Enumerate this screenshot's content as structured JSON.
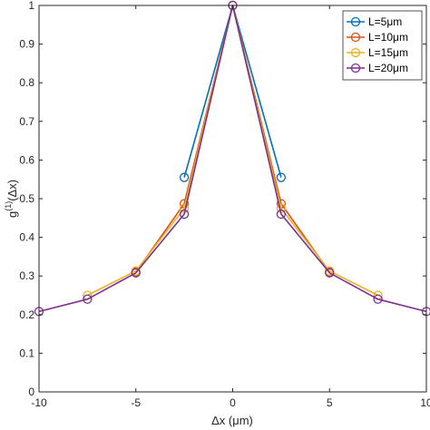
{
  "chart_data": {
    "type": "line",
    "title": "",
    "xlabel": "Δx (μm)",
    "ylabel_parts": {
      "base": "g",
      "sup": "(1)",
      "arg": "(Δx)"
    },
    "xlim": [
      -10,
      10
    ],
    "ylim": [
      0,
      1
    ],
    "x_ticks": [
      "-10",
      "-5",
      "0",
      "5",
      "10"
    ],
    "y_ticks": [
      "0",
      "0.1",
      "0.2",
      "0.3",
      "0.4",
      "0.5",
      "0.6",
      "0.7",
      "0.8",
      "0.9",
      "1"
    ],
    "grid": false,
    "legend_position": "top-right",
    "series": [
      {
        "name": "L=5μm",
        "color": "#0072BD",
        "x": [
          -2.5,
          0,
          2.5
        ],
        "y": [
          0.555,
          1.0,
          0.555
        ]
      },
      {
        "name": "L=10μm",
        "color": "#D95319",
        "x": [
          -5,
          -2.5,
          0,
          2.5,
          5
        ],
        "y": [
          0.31,
          0.487,
          1.0,
          0.487,
          0.31
        ]
      },
      {
        "name": "L=15μm",
        "color": "#EDB120",
        "x": [
          -7.5,
          -5,
          -2.5,
          0,
          2.5,
          5,
          7.5
        ],
        "y": [
          0.25,
          0.313,
          0.475,
          1.0,
          0.475,
          0.313,
          0.25
        ]
      },
      {
        "name": "L=20μm",
        "color": "#7E2F8E",
        "x": [
          -10,
          -7.5,
          -5,
          -2.5,
          0,
          2.5,
          5,
          7.5,
          10
        ],
        "y": [
          0.208,
          0.24,
          0.308,
          0.46,
          1.0,
          0.46,
          0.308,
          0.24,
          0.208
        ]
      }
    ]
  }
}
